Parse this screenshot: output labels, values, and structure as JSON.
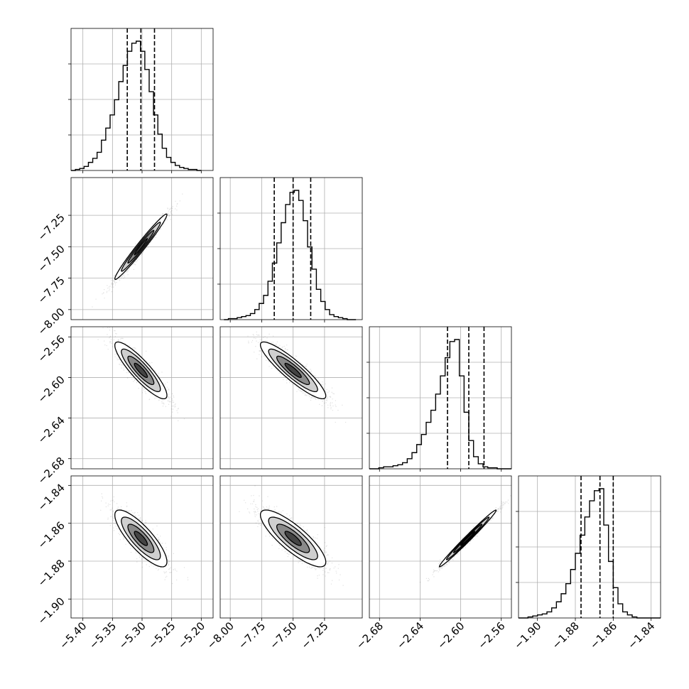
{
  "chart_data": {
    "type": "corner",
    "parameters": [
      {
        "lim": [
          -5.42,
          -5.18
        ],
        "ticks": [
          -5.4,
          -5.35,
          -5.3,
          -5.25,
          -5.2
        ],
        "tick_labels": [
          "−5.40",
          "−5.35",
          "−5.30",
          "−5.25",
          "−5.20"
        ]
      },
      {
        "lim": [
          -8.08,
          -6.95
        ],
        "ticks": [
          -8.0,
          -7.75,
          -7.5,
          -7.25
        ],
        "tick_labels": [
          "−8.00",
          "−7.75",
          "−7.50",
          "−7.25"
        ]
      },
      {
        "lim": [
          -2.69,
          -2.55
        ],
        "ticks": [
          -2.68,
          -2.64,
          -2.6,
          -2.56
        ],
        "tick_labels": [
          "−2.68",
          "−2.64",
          "−2.60",
          "−2.56"
        ]
      },
      {
        "lim": [
          -1.91,
          -1.835
        ],
        "ticks": [
          -1.9,
          -1.88,
          -1.86,
          -1.84
        ],
        "tick_labels": [
          "−1.90",
          "−1.88",
          "−1.86",
          "−1.84"
        ]
      }
    ],
    "histograms": [
      {
        "edges_lim": [
          -5.42,
          -5.2
        ],
        "counts": [
          0,
          1,
          2,
          4,
          8,
          12,
          18,
          30,
          42,
          55,
          70,
          88,
          104,
          118,
          126,
          128,
          118,
          100,
          78,
          55,
          36,
          22,
          13,
          8,
          5,
          3,
          2,
          1,
          1,
          0
        ],
        "quantiles": [
          -5.325,
          -5.302,
          -5.279
        ]
      },
      {
        "edges_lim": [
          -8.05,
          -7.0
        ],
        "counts": [
          0,
          1,
          1,
          2,
          3,
          4,
          6,
          10,
          16,
          24,
          38,
          56,
          76,
          96,
          114,
          126,
          128,
          118,
          98,
          72,
          50,
          30,
          18,
          10,
          5,
          3,
          2,
          1,
          0,
          0
        ],
        "quantiles": [
          -7.65,
          -7.5,
          -7.36
        ]
      },
      {
        "edges_lim": [
          -2.69,
          -2.55
        ],
        "counts": [
          0,
          0,
          1,
          2,
          2,
          3,
          4,
          6,
          10,
          16,
          24,
          34,
          46,
          58,
          74,
          92,
          110,
          126,
          128,
          92,
          56,
          28,
          12,
          5,
          2,
          1,
          1,
          0,
          0,
          0
        ],
        "quantiles": [
          -2.613,
          -2.592,
          -2.577
        ]
      },
      {
        "edges_lim": [
          -1.91,
          -1.835
        ],
        "counts": [
          0,
          0,
          1,
          2,
          3,
          4,
          6,
          10,
          16,
          24,
          34,
          48,
          64,
          82,
          100,
          116,
          126,
          128,
          92,
          56,
          30,
          14,
          6,
          3,
          1,
          0,
          0,
          0,
          0,
          0
        ],
        "quantiles": [
          -1.877,
          -1.867,
          -1.86
        ]
      }
    ],
    "pairs": [
      {
        "row": 1,
        "col": 0,
        "mean": [
          -5.302,
          -7.5
        ],
        "sd": [
          0.022,
          0.13
        ],
        "rho": 0.98
      },
      {
        "row": 2,
        "col": 0,
        "mean": [
          -5.302,
          -2.593
        ],
        "sd": [
          0.022,
          0.014
        ],
        "rho": -0.88
      },
      {
        "row": 2,
        "col": 1,
        "mean": [
          -7.5,
          -2.593
        ],
        "sd": [
          0.13,
          0.014
        ],
        "rho": -0.9
      },
      {
        "row": 3,
        "col": 0,
        "mean": [
          -5.302,
          -1.868
        ],
        "sd": [
          0.022,
          0.0075
        ],
        "rho": -0.82
      },
      {
        "row": 3,
        "col": 1,
        "mean": [
          -7.5,
          -1.868
        ],
        "sd": [
          0.13,
          0.0075
        ],
        "rho": -0.83
      },
      {
        "row": 3,
        "col": 2,
        "mean": [
          -2.593,
          -1.868
        ],
        "sd": [
          0.014,
          0.0075
        ],
        "rho": 0.99
      }
    ],
    "grid": true,
    "quantile_lines": "dashed",
    "contour_levels": [
      0.5,
      1.0,
      1.5,
      2.0
    ]
  }
}
